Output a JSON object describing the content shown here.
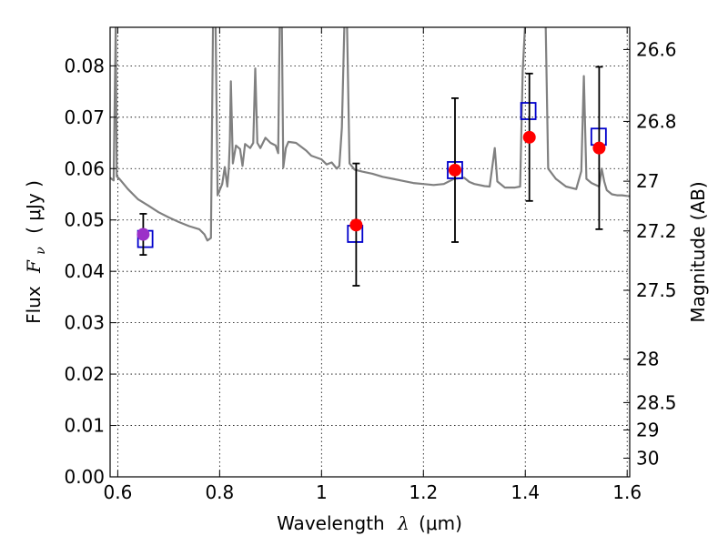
{
  "chart_data": {
    "type": "scatter",
    "title": "",
    "xlabel": "Wavelength",
    "xlabel_symbol": "λ",
    "xlabel_unit": "(μm)",
    "ylabel": "Flux",
    "ylabel_symbol": "F",
    "ylabel_sub": "ν",
    "ylabel_unit": "( μJy )",
    "y2label": "Magnitude (AB)",
    "xlim": [
      0.585,
      1.605
    ],
    "ylim": [
      0.0,
      0.0875
    ],
    "grid": true,
    "legend": "none",
    "x_ticks": [
      {
        "value": 0.6,
        "label": "0.6"
      },
      {
        "value": 0.8,
        "label": "0.8"
      },
      {
        "value": 1.0,
        "label": "1"
      },
      {
        "value": 1.2,
        "label": "1.2"
      },
      {
        "value": 1.4,
        "label": "1.4"
      },
      {
        "value": 1.6,
        "label": "1.6"
      }
    ],
    "y_ticks": [
      {
        "value": 0.0,
        "label": "0.00"
      },
      {
        "value": 0.01,
        "label": "0.01"
      },
      {
        "value": 0.02,
        "label": "0.02"
      },
      {
        "value": 0.03,
        "label": "0.03"
      },
      {
        "value": 0.04,
        "label": "0.04"
      },
      {
        "value": 0.05,
        "label": "0.05"
      },
      {
        "value": 0.06,
        "label": "0.06"
      },
      {
        "value": 0.07,
        "label": "0.07"
      },
      {
        "value": 0.08,
        "label": "0.08"
      }
    ],
    "y2_ticks": [
      {
        "value": 26.6,
        "label": "26.6"
      },
      {
        "value": 26.8,
        "label": "26.8"
      },
      {
        "value": 27.0,
        "label": "27"
      },
      {
        "value": 27.2,
        "label": "27.2"
      },
      {
        "value": 27.5,
        "label": "27.5"
      },
      {
        "value": 28.0,
        "label": "28"
      },
      {
        "value": 28.5,
        "label": "28.5"
      },
      {
        "value": 29.0,
        "label": "29"
      },
      {
        "value": 30.0,
        "label": "30"
      }
    ],
    "colors": {
      "model": "#808080",
      "observed": "#ff0000",
      "model_band": "#0000cc",
      "error": "#000000",
      "overlap": "#9b30c8"
    },
    "observed": [
      {
        "x": 0.65,
        "y": 0.0472,
        "yerr_low": 0.004,
        "yerr_high": 0.004
      },
      {
        "x": 1.068,
        "y": 0.049,
        "yerr_low": 0.0118,
        "yerr_high": 0.012
      },
      {
        "x": 1.262,
        "y": 0.0597,
        "yerr_low": 0.014,
        "yerr_high": 0.014
      },
      {
        "x": 1.408,
        "y": 0.0661,
        "yerr_low": 0.0124,
        "yerr_high": 0.0124
      },
      {
        "x": 1.545,
        "y": 0.064,
        "yerr_low": 0.0158,
        "yerr_high": 0.0158
      }
    ],
    "model_bands": [
      {
        "x": 0.654,
        "y": 0.0463
      },
      {
        "x": 1.066,
        "y": 0.0473
      },
      {
        "x": 1.262,
        "y": 0.0597
      },
      {
        "x": 1.406,
        "y": 0.0712
      },
      {
        "x": 1.544,
        "y": 0.0662
      }
    ],
    "model_spectrum": [
      [
        0.585,
        0.0582
      ],
      [
        0.592,
        0.0577
      ],
      [
        0.596,
        0.0885
      ],
      [
        0.598,
        0.0585
      ],
      [
        0.605,
        0.0578
      ],
      [
        0.62,
        0.056
      ],
      [
        0.64,
        0.054
      ],
      [
        0.66,
        0.0528
      ],
      [
        0.68,
        0.0515
      ],
      [
        0.7,
        0.0505
      ],
      [
        0.72,
        0.0496
      ],
      [
        0.74,
        0.0488
      ],
      [
        0.76,
        0.0482
      ],
      [
        0.77,
        0.0472
      ],
      [
        0.776,
        0.046
      ],
      [
        0.783,
        0.0465
      ],
      [
        0.787,
        0.0885
      ],
      [
        0.792,
        0.0885
      ],
      [
        0.796,
        0.0548
      ],
      [
        0.805,
        0.057
      ],
      [
        0.81,
        0.0603
      ],
      [
        0.815,
        0.0565
      ],
      [
        0.818,
        0.06
      ],
      [
        0.82,
        0.0655
      ],
      [
        0.822,
        0.077
      ],
      [
        0.826,
        0.061
      ],
      [
        0.832,
        0.0645
      ],
      [
        0.84,
        0.0638
      ],
      [
        0.845,
        0.0605
      ],
      [
        0.85,
        0.0648
      ],
      [
        0.86,
        0.064
      ],
      [
        0.866,
        0.065
      ],
      [
        0.87,
        0.0795
      ],
      [
        0.874,
        0.065
      ],
      [
        0.88,
        0.064
      ],
      [
        0.89,
        0.066
      ],
      [
        0.9,
        0.065
      ],
      [
        0.91,
        0.0645
      ],
      [
        0.915,
        0.063
      ],
      [
        0.918,
        0.0885
      ],
      [
        0.922,
        0.0885
      ],
      [
        0.925,
        0.0602
      ],
      [
        0.93,
        0.064
      ],
      [
        0.935,
        0.0652
      ],
      [
        0.95,
        0.065
      ],
      [
        0.97,
        0.0635
      ],
      [
        0.98,
        0.0625
      ],
      [
        1.0,
        0.0618
      ],
      [
        1.01,
        0.0608
      ],
      [
        1.02,
        0.0612
      ],
      [
        1.03,
        0.06
      ],
      [
        1.035,
        0.0605
      ],
      [
        1.04,
        0.068
      ],
      [
        1.045,
        0.0885
      ],
      [
        1.05,
        0.0885
      ],
      [
        1.055,
        0.061
      ],
      [
        1.065,
        0.0598
      ],
      [
        1.08,
        0.0594
      ],
      [
        1.1,
        0.059
      ],
      [
        1.12,
        0.0584
      ],
      [
        1.14,
        0.058
      ],
      [
        1.16,
        0.0576
      ],
      [
        1.18,
        0.0572
      ],
      [
        1.2,
        0.057
      ],
      [
        1.22,
        0.0568
      ],
      [
        1.24,
        0.057
      ],
      [
        1.26,
        0.058
      ],
      [
        1.28,
        0.0582
      ],
      [
        1.29,
        0.0574
      ],
      [
        1.3,
        0.057
      ],
      [
        1.32,
        0.0566
      ],
      [
        1.33,
        0.0565
      ],
      [
        1.34,
        0.064
      ],
      [
        1.345,
        0.0575
      ],
      [
        1.36,
        0.0563
      ],
      [
        1.38,
        0.0563
      ],
      [
        1.39,
        0.0565
      ],
      [
        1.395,
        0.079
      ],
      [
        1.4,
        0.0885
      ],
      [
        1.42,
        0.0885
      ],
      [
        1.43,
        0.0885
      ],
      [
        1.44,
        0.0885
      ],
      [
        1.445,
        0.06
      ],
      [
        1.46,
        0.058
      ],
      [
        1.48,
        0.0565
      ],
      [
        1.5,
        0.056
      ],
      [
        1.51,
        0.0595
      ],
      [
        1.515,
        0.078
      ],
      [
        1.52,
        0.058
      ],
      [
        1.53,
        0.0572
      ],
      [
        1.545,
        0.0565
      ],
      [
        1.55,
        0.06
      ],
      [
        1.555,
        0.0575
      ],
      [
        1.56,
        0.0558
      ],
      [
        1.57,
        0.055
      ],
      [
        1.58,
        0.0548
      ],
      [
        1.59,
        0.0548
      ],
      [
        1.605,
        0.0546
      ]
    ]
  }
}
